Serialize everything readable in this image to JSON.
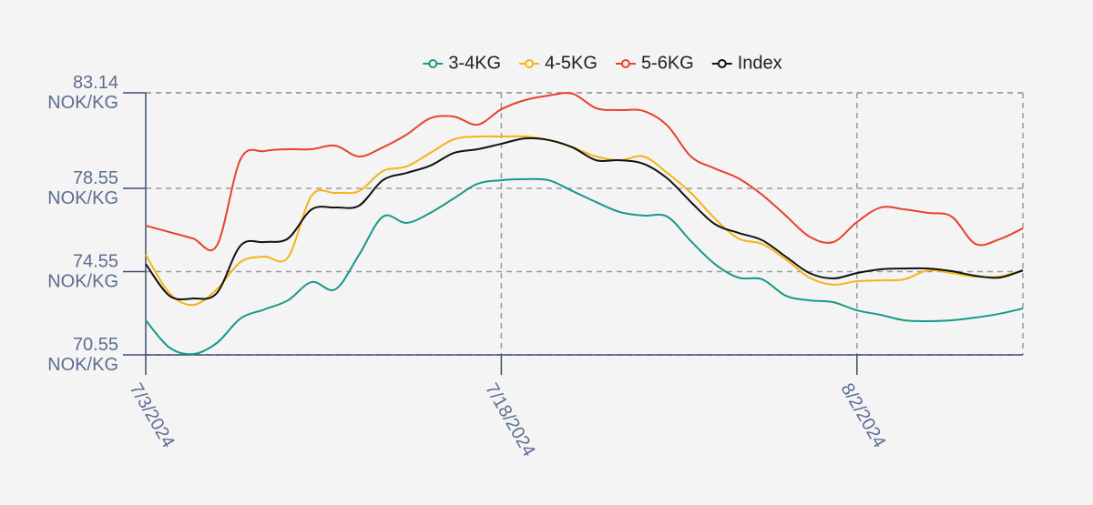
{
  "chart_data": {
    "type": "line",
    "x": [
      "7/3/2024",
      "7/4/2024",
      "7/5/2024",
      "7/6/2024",
      "7/7/2024",
      "7/8/2024",
      "7/9/2024",
      "7/10/2024",
      "7/11/2024",
      "7/12/2024",
      "7/13/2024",
      "7/14/2024",
      "7/15/2024",
      "7/16/2024",
      "7/17/2024",
      "7/18/2024",
      "7/19/2024",
      "7/20/2024",
      "7/21/2024",
      "7/22/2024",
      "7/23/2024",
      "7/24/2024",
      "7/25/2024",
      "7/26/2024",
      "7/27/2024",
      "7/28/2024",
      "7/29/2024",
      "7/30/2024",
      "7/31/2024",
      "8/1/2024",
      "8/2/2024",
      "8/3/2024",
      "8/4/2024",
      "8/5/2024",
      "8/6/2024",
      "8/7/2024",
      "8/8/2024",
      "8/9/2024"
    ],
    "series": [
      {
        "name": "3-4KG",
        "color": "#17998a",
        "values": [
          72.21,
          70.9,
          70.59,
          71.12,
          72.3,
          72.73,
          73.17,
          74.05,
          73.7,
          75.36,
          77.19,
          76.89,
          77.37,
          78.07,
          78.77,
          78.94,
          78.99,
          78.94,
          78.42,
          77.89,
          77.41,
          77.24,
          77.19,
          76.01,
          74.92,
          74.26,
          74.18,
          73.39,
          73.17,
          73.08,
          72.69,
          72.47,
          72.21,
          72.17,
          72.21,
          72.34,
          72.52,
          72.78
        ]
      },
      {
        "name": "4-5KG",
        "color": "#f5b414",
        "values": [
          75.36,
          73.52,
          72.95,
          73.7,
          75.01,
          75.27,
          75.23,
          78.2,
          78.33,
          78.42,
          79.38,
          79.6,
          80.25,
          80.91,
          81.04,
          81.04,
          81.04,
          80.87,
          80.52,
          80.08,
          79.9,
          80.08,
          79.29,
          78.33,
          77.11,
          76.14,
          75.88,
          75.14,
          74.26,
          73.92,
          74.09,
          74.13,
          74.18,
          74.61,
          74.48,
          74.31,
          74.31,
          74.61
        ]
      },
      {
        "name": "5-6KG",
        "color": "#e8412e",
        "values": [
          76.76,
          76.45,
          76.14,
          75.8,
          79.95,
          80.34,
          80.43,
          80.43,
          80.6,
          80.08,
          80.52,
          81.13,
          81.92,
          82.0,
          81.61,
          82.35,
          82.79,
          83.01,
          83.1,
          82.4,
          82.31,
          82.27,
          81.57,
          80.08,
          79.51,
          79.03,
          78.24,
          77.24,
          76.23,
          75.97,
          76.93,
          77.63,
          77.54,
          77.37,
          77.19,
          75.88,
          76.1,
          76.63
        ]
      },
      {
        "name": "Index",
        "color": "#111111",
        "values": [
          74.92,
          73.39,
          73.26,
          73.52,
          75.8,
          75.97,
          76.14,
          77.54,
          77.63,
          77.72,
          78.94,
          79.29,
          79.64,
          80.25,
          80.43,
          80.69,
          80.95,
          80.87,
          80.52,
          79.9,
          79.9,
          79.73,
          79.03,
          77.89,
          76.84,
          76.41,
          76.06,
          75.27,
          74.48,
          74.22,
          74.48,
          74.66,
          74.7,
          74.7,
          74.57,
          74.35,
          74.26,
          74.61
        ]
      }
    ],
    "xlim": [
      "7/3/2024",
      "8/9/2024"
    ],
    "xticks": [
      "7/3/2024",
      "7/18/2024",
      "8/2/2024"
    ],
    "ylim": [
      70.55,
      83.14
    ],
    "yticks": [
      {
        "value": 70.55,
        "label": "70.55 NOK/KG"
      },
      {
        "value": 74.55,
        "label": "74.55 NOK/KG"
      },
      {
        "value": 78.55,
        "label": "78.55 NOK/KG"
      },
      {
        "value": 83.14,
        "label": "83.14 NOK/KG"
      }
    ],
    "grid": true,
    "legend": "top"
  }
}
